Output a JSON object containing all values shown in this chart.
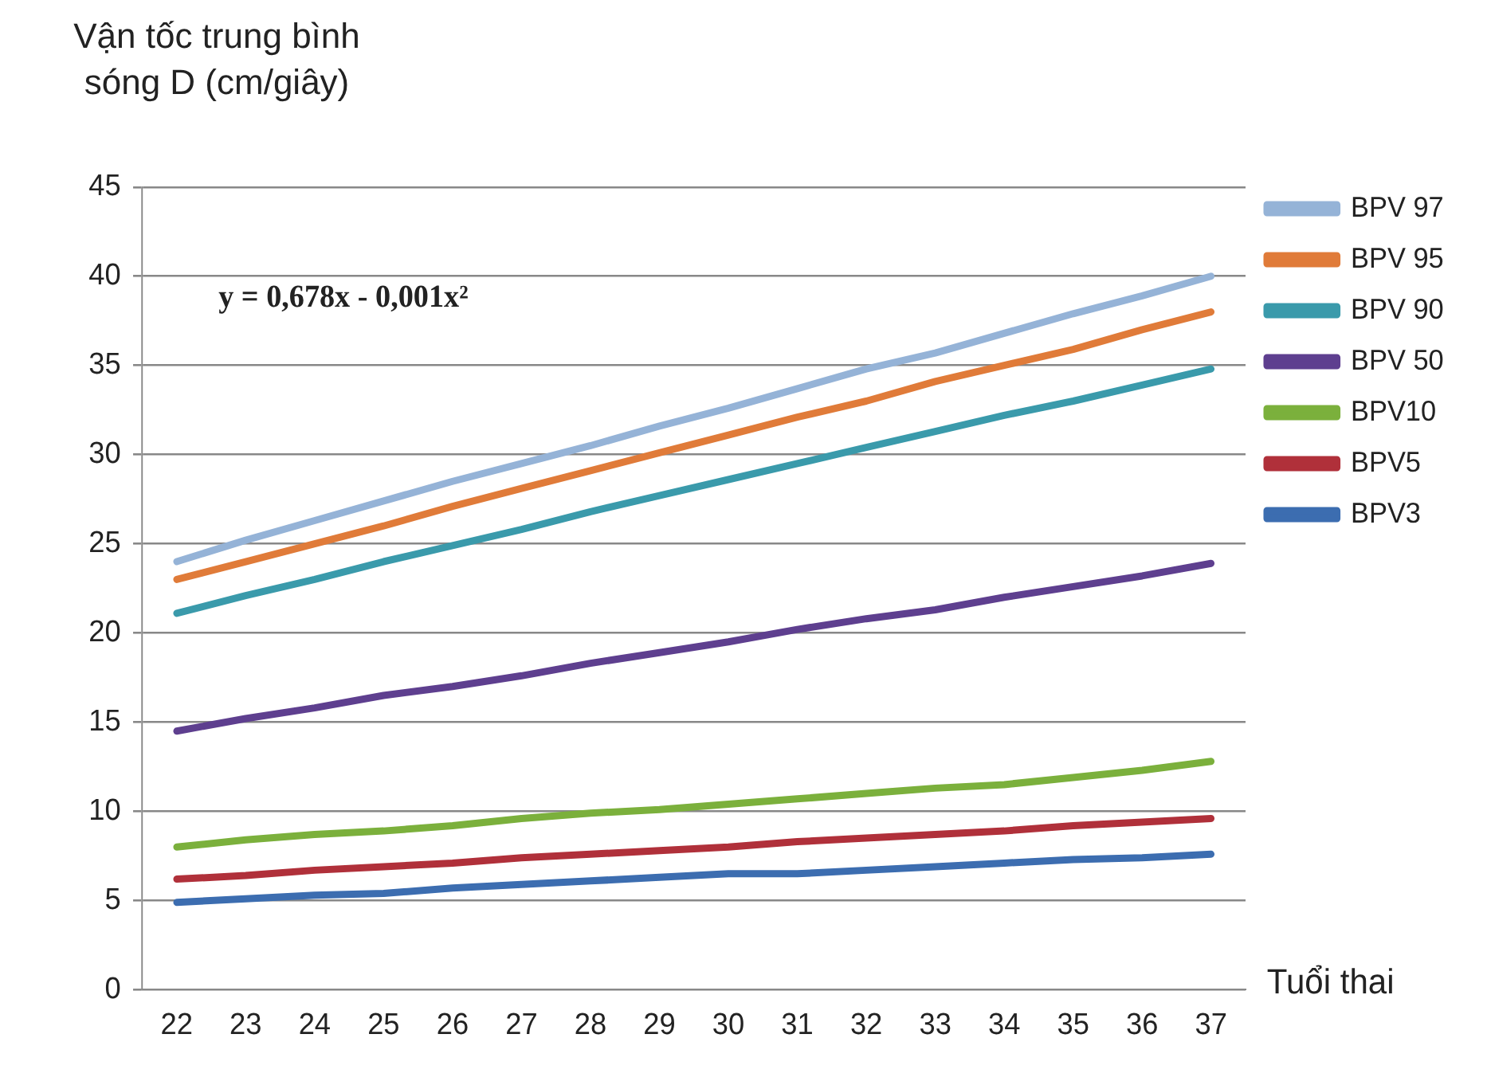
{
  "chart_data": {
    "type": "line",
    "ylabel": "Vận tốc trung bình sóng D (cm/giây)",
    "xlabel": "Tuổi thai",
    "annotations": [
      "y = 0,678x - 0,001x²"
    ],
    "categories": [
      "22",
      "23",
      "24",
      "25",
      "26",
      "27",
      "28",
      "29",
      "30",
      "31",
      "32",
      "33",
      "34",
      "35",
      "36",
      "37"
    ],
    "ylim": [
      0,
      45
    ],
    "yticks": [
      0,
      5,
      10,
      15,
      20,
      25,
      30,
      35,
      40,
      45
    ],
    "grid": "y",
    "legend": "right",
    "marker": "none",
    "line_style": "solid",
    "series": [
      {
        "name": "BPV 97",
        "color": "#95b3d7",
        "values": [
          24.0,
          25.2,
          26.3,
          27.4,
          28.5,
          29.5,
          30.5,
          31.6,
          32.6,
          33.7,
          34.8,
          35.7,
          36.8,
          37.9,
          38.9,
          40.0
        ]
      },
      {
        "name": "BPV 95",
        "color": "#e07b39",
        "values": [
          23.0,
          24.0,
          25.0,
          26.0,
          27.1,
          28.1,
          29.1,
          30.1,
          31.1,
          32.1,
          33.0,
          34.1,
          35.0,
          35.9,
          37.0,
          38.0
        ]
      },
      {
        "name": "BPV 90",
        "color": "#3a9aab",
        "values": [
          21.1,
          22.1,
          23.0,
          24.0,
          24.9,
          25.8,
          26.8,
          27.7,
          28.6,
          29.5,
          30.4,
          31.3,
          32.2,
          33.0,
          33.9,
          34.8
        ]
      },
      {
        "name": "BPV 50",
        "color": "#5e3f8f",
        "values": [
          14.5,
          15.2,
          15.8,
          16.5,
          17.0,
          17.6,
          18.3,
          18.9,
          19.5,
          20.2,
          20.8,
          21.3,
          22.0,
          22.6,
          23.2,
          23.9
        ]
      },
      {
        "name": "BPV10",
        "color": "#7bb03c",
        "values": [
          8.0,
          8.4,
          8.7,
          8.9,
          9.2,
          9.6,
          9.9,
          10.1,
          10.4,
          10.7,
          11.0,
          11.3,
          11.5,
          11.9,
          12.3,
          12.8
        ]
      },
      {
        "name": "BPV5",
        "color": "#b0303a",
        "values": [
          6.2,
          6.4,
          6.7,
          6.9,
          7.1,
          7.4,
          7.6,
          7.8,
          8.0,
          8.3,
          8.5,
          8.7,
          8.9,
          9.2,
          9.4,
          9.6
        ]
      },
      {
        "name": "BPV3",
        "color": "#3c6db0",
        "values": [
          4.9,
          5.1,
          5.3,
          5.4,
          5.7,
          5.9,
          6.1,
          6.3,
          6.5,
          6.5,
          6.7,
          6.9,
          7.1,
          7.3,
          7.4,
          7.6
        ]
      }
    ]
  }
}
